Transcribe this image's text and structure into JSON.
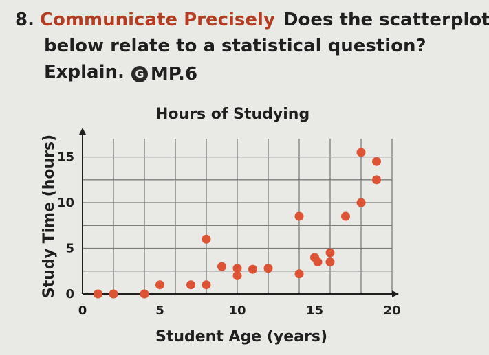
{
  "problem": {
    "number": "8.",
    "heading": "Communicate Precisely",
    "line1_rest": "Does the scatterplot",
    "line2": "below relate to a statistical question?",
    "line3": "Explain.",
    "badge_letter": "G",
    "standard": "MP.6"
  },
  "chart_data": {
    "type": "scatter",
    "title": "Hours of Studying",
    "xlabel": "Student Age (years)",
    "ylabel": "Study Time (hours)",
    "xlim": [
      0,
      20
    ],
    "ylim": [
      0,
      17
    ],
    "x_ticks": [
      "0",
      "5",
      "10",
      "15",
      "20"
    ],
    "y_ticks": [
      "0",
      "5",
      "10",
      "15"
    ],
    "grid": true,
    "point_color": "#dc5335",
    "points": [
      {
        "x": 1,
        "y": 0
      },
      {
        "x": 2,
        "y": 0
      },
      {
        "x": 4,
        "y": 0
      },
      {
        "x": 5,
        "y": 1
      },
      {
        "x": 7,
        "y": 1
      },
      {
        "x": 8,
        "y": 1
      },
      {
        "x": 8,
        "y": 6
      },
      {
        "x": 9,
        "y": 3
      },
      {
        "x": 10,
        "y": 2
      },
      {
        "x": 10,
        "y": 2.8
      },
      {
        "x": 11,
        "y": 2.7
      },
      {
        "x": 12,
        "y": 2.8
      },
      {
        "x": 14,
        "y": 2.2
      },
      {
        "x": 14,
        "y": 8.5
      },
      {
        "x": 15,
        "y": 4
      },
      {
        "x": 15.2,
        "y": 3.5
      },
      {
        "x": 16,
        "y": 3.5
      },
      {
        "x": 16,
        "y": 4.5
      },
      {
        "x": 17,
        "y": 8.5
      },
      {
        "x": 18,
        "y": 15.5
      },
      {
        "x": 18,
        "y": 10
      },
      {
        "x": 19,
        "y": 14.5
      },
      {
        "x": 19,
        "y": 12.5
      }
    ]
  }
}
